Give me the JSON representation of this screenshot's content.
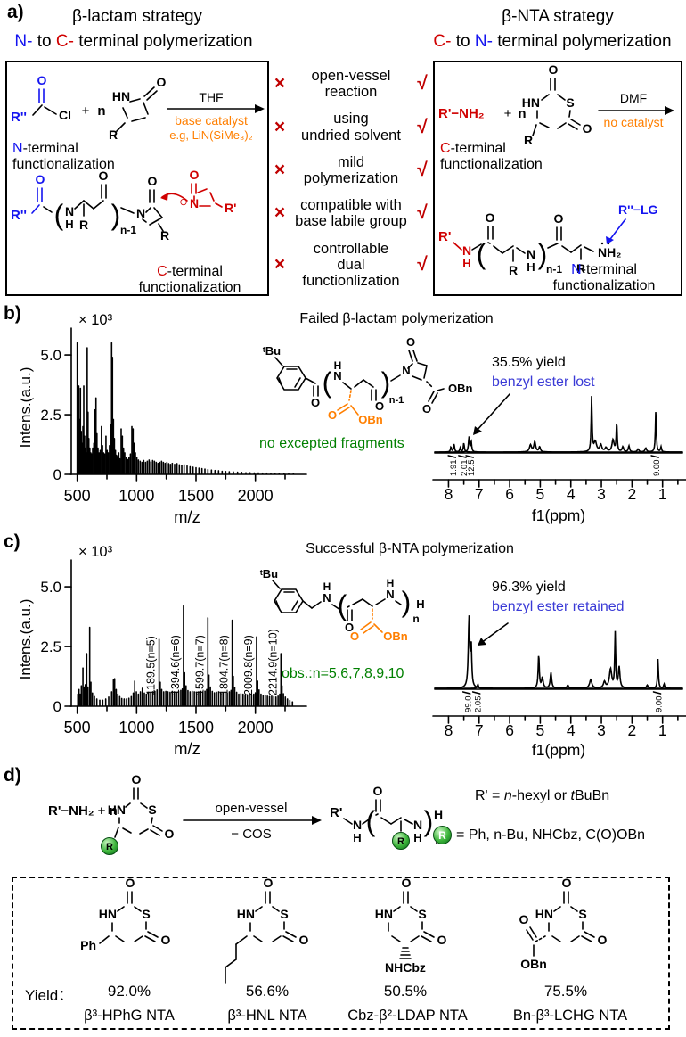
{
  "atoms": {
    "O": "O",
    "S": "S",
    "N": "N",
    "H": "H",
    "HN": "HN",
    "NH2": "NH₂",
    "R": "R",
    "Rp": "R'",
    "Rpp": "R''",
    "Cl": "Cl",
    "plus": "+",
    "n": "n",
    "n1": "n-1",
    "Ph": "Ph",
    "OBn": "OBn",
    "NHCbz": "NHCbz",
    "tBu": "ᵗBu",
    "RppLG": "R''−LG",
    "RpNH2": "R'−NH₂",
    "minus": "⊖"
  },
  "colors": {
    "red": "#d00000",
    "blue": "#1414f0",
    "annotation_blue": "#3a3ad6",
    "orange": "#ff7f00",
    "green": "#008000",
    "sphere_green": "#3db53b"
  },
  "panel_a": {
    "label": "a)",
    "left": {
      "title": "β-lactam strategy",
      "sub": [
        "N-",
        " to ",
        "C-",
        " terminal polymerization"
      ],
      "solvent": "THF",
      "cat1": "base catalyst",
      "cat2": "e.g, LiN(SiMe₃)₂",
      "n_term": [
        "N",
        "-terminal"
      ],
      "c_term": [
        "C",
        "-terminal"
      ],
      "func": "functionalization"
    },
    "right": {
      "title": "β-NTA strategy",
      "sub": [
        "C-",
        " to ",
        "N-",
        " terminal polymerization"
      ],
      "solvent": "DMF",
      "cat": "no catalyst",
      "c_term": [
        "C",
        "-terminal"
      ],
      "n_term": [
        "N",
        "-terminal"
      ],
      "func": "functionalization"
    },
    "compare": {
      "cross": "×",
      "check": "√",
      "items": [
        [
          "open-vessel",
          "reaction"
        ],
        [
          "using",
          "undried solvent"
        ],
        [
          "mild",
          "polymerization"
        ],
        [
          "compatible with",
          "base labile group"
        ],
        [
          "controllable",
          "dual functionlization"
        ]
      ]
    }
  },
  "panel_b": {
    "label": "b)",
    "title": "Failed β-lactam polymerization",
    "yield": "35.5% yield",
    "note": "benzyl ester lost",
    "green_note": "no excepted fragments"
  },
  "panel_c": {
    "label": "c)",
    "title": "Successful β-NTA polymerization",
    "yield": "96.3% yield",
    "note": "benzyl ester retained",
    "green_note": "obs.:n=5,6,7,8,9,10"
  },
  "panel_d": {
    "label": "d)",
    "reactant": "R'−NH₂ + n",
    "arrow_top": "open-vessel",
    "arrow_bot": "− COS",
    "legend1": {
      "pre": "R' = ",
      "i1": "n",
      "mid": "-hexyl or ",
      "i2": "t",
      "post": "BuBn"
    },
    "legend2": {
      "eq": "= Ph, n-Bu, NHCbz, C(O)OBn"
    },
    "yield_label": "Yield：",
    "monomers": [
      {
        "yield": "92.0%",
        "name": "β³-HPhG NTA"
      },
      {
        "yield": "56.6%",
        "name": "β³-HNL NTA"
      },
      {
        "yield": "50.5%",
        "name": "Cbz-β²-LDAP NTA"
      },
      {
        "yield": "75.5%",
        "name": "Bn-β³-LCHG NTA"
      }
    ]
  },
  "chart_data": [
    {
      "id": "ms_b",
      "type": "bar",
      "kind": "ms",
      "title": "Failed β-lactam polymerization MALDI-MS",
      "xlabel": "m/z",
      "ylabel": "Intens.(a.u.)",
      "scale_label": "× 10³",
      "xlim": [
        450,
        2400
      ],
      "ylim": [
        0,
        5.6
      ],
      "xticks": [
        500,
        1000,
        1500,
        2000
      ],
      "yticks": [
        0,
        2.5,
        5.0
      ],
      "ytick_labels": [
        "0",
        "2.5",
        "5.0"
      ],
      "peaks": [
        [
          500,
          5.5
        ],
        [
          506,
          3.0
        ],
        [
          513,
          3.7
        ],
        [
          520,
          2.3
        ],
        [
          527,
          3.6
        ],
        [
          534,
          1.8
        ],
        [
          541,
          1.3
        ],
        [
          548,
          2.0
        ],
        [
          555,
          3.7
        ],
        [
          562,
          1.6
        ],
        [
          570,
          1.1
        ],
        [
          578,
          0.9
        ],
        [
          584,
          5.3
        ],
        [
          591,
          2.6
        ],
        [
          598,
          1.5
        ],
        [
          606,
          1.1
        ],
        [
          614,
          0.9
        ],
        [
          622,
          0.85
        ],
        [
          630,
          1.1
        ],
        [
          640,
          1.3
        ],
        [
          650,
          2.7
        ],
        [
          658,
          3.2
        ],
        [
          666,
          1.7
        ],
        [
          675,
          1.1
        ],
        [
          684,
          0.9
        ],
        [
          694,
          1.0
        ],
        [
          704,
          2.0
        ],
        [
          713,
          1.2
        ],
        [
          722,
          0.9
        ],
        [
          732,
          0.85
        ],
        [
          742,
          1.6
        ],
        [
          752,
          1.0
        ],
        [
          762,
          0.9
        ],
        [
          772,
          1.2
        ],
        [
          782,
          2.1
        ],
        [
          790,
          5.5
        ],
        [
          797,
          4.9
        ],
        [
          805,
          2.3
        ],
        [
          813,
          1.5
        ],
        [
          822,
          1.0
        ],
        [
          831,
          0.8
        ],
        [
          840,
          0.75
        ],
        [
          850,
          0.9
        ],
        [
          860,
          0.65
        ],
        [
          870,
          1.9
        ],
        [
          880,
          1.6
        ],
        [
          890,
          1.1
        ],
        [
          900,
          0.9
        ],
        [
          912,
          0.7
        ],
        [
          924,
          0.62
        ],
        [
          936,
          0.7
        ],
        [
          948,
          0.85
        ],
        [
          960,
          2.0
        ],
        [
          970,
          1.9
        ],
        [
          980,
          1.3
        ],
        [
          990,
          0.9
        ],
        [
          1002,
          0.7
        ],
        [
          1015,
          0.6
        ],
        [
          1030,
          0.55
        ],
        [
          1045,
          0.5
        ],
        [
          1060,
          0.58
        ],
        [
          1075,
          0.5
        ],
        [
          1090,
          0.55
        ],
        [
          1105,
          0.6
        ],
        [
          1120,
          0.52
        ],
        [
          1135,
          0.58
        ],
        [
          1150,
          0.55
        ],
        [
          1165,
          0.5
        ],
        [
          1180,
          0.46
        ],
        [
          1195,
          0.5
        ],
        [
          1210,
          0.55
        ],
        [
          1225,
          0.5
        ],
        [
          1240,
          0.46
        ],
        [
          1255,
          0.5
        ],
        [
          1270,
          0.45
        ],
        [
          1285,
          0.42
        ],
        [
          1300,
          0.46
        ],
        [
          1320,
          0.42
        ],
        [
          1340,
          0.45
        ],
        [
          1360,
          0.4
        ],
        [
          1380,
          0.37
        ],
        [
          1400,
          0.4
        ],
        [
          1425,
          0.35
        ],
        [
          1450,
          0.32
        ],
        [
          1475,
          0.3
        ],
        [
          1500,
          0.28
        ],
        [
          1525,
          0.26
        ],
        [
          1550,
          0.24
        ],
        [
          1575,
          0.22
        ],
        [
          1600,
          0.2
        ],
        [
          1630,
          0.18
        ],
        [
          1660,
          0.16
        ],
        [
          1690,
          0.15
        ],
        [
          1720,
          0.13
        ],
        [
          1750,
          0.12
        ],
        [
          1780,
          0.11
        ],
        [
          1815,
          0.1
        ],
        [
          1850,
          0.09
        ],
        [
          1885,
          0.08
        ],
        [
          1920,
          0.07
        ],
        [
          1955,
          0.07
        ],
        [
          1990,
          0.06
        ],
        [
          2025,
          0.06
        ],
        [
          2060,
          0.05
        ],
        [
          2095,
          0.05
        ],
        [
          2130,
          0.04
        ],
        [
          2165,
          0.04
        ],
        [
          2200,
          0.04
        ],
        [
          2240,
          0.03
        ],
        [
          2280,
          0.03
        ],
        [
          2320,
          0.03
        ]
      ]
    },
    {
      "id": "nmr_b",
      "type": "line",
      "kind": "nmr",
      "title": "Failed β-lactam polymerization 1H NMR",
      "xlabel": "f1(ppm)",
      "xticks": [
        8,
        7,
        6,
        5,
        4,
        3,
        2,
        1
      ],
      "xlim": [
        8.45,
        0.35
      ],
      "peaks_black": [
        [
          7.92,
          0.05,
          0.02
        ],
        [
          7.82,
          0.08,
          0.02
        ],
        [
          7.62,
          0.04,
          0.02
        ],
        [
          7.5,
          0.09,
          0.02
        ],
        [
          5.32,
          0.07,
          0.04
        ],
        [
          5.18,
          0.1,
          0.035
        ],
        [
          5.02,
          0.05,
          0.03
        ],
        [
          3.32,
          0.55,
          0.018
        ],
        [
          3.2,
          0.1,
          0.05
        ],
        [
          3.02,
          0.07,
          0.04
        ],
        [
          2.85,
          0.04,
          0.04
        ],
        [
          2.62,
          0.12,
          0.04
        ],
        [
          2.5,
          0.3,
          0.016
        ],
        [
          2.3,
          0.05,
          0.03
        ],
        [
          2.1,
          0.06,
          0.025
        ],
        [
          1.8,
          0.03,
          0.03
        ],
        [
          1.55,
          0.04,
          0.03
        ],
        [
          1.22,
          0.42,
          0.016
        ],
        [
          1.05,
          0.05,
          0.02
        ]
      ],
      "peaks_orange": [
        [
          7.33,
          0.15,
          0.022
        ],
        [
          7.26,
          0.1,
          0.02
        ]
      ],
      "integrations": [
        [
          7.86,
          "1.91"
        ],
        [
          7.52,
          "2.01"
        ],
        [
          7.28,
          "12.5"
        ],
        [
          1.22,
          "9.00"
        ]
      ]
    },
    {
      "id": "ms_c",
      "type": "bar",
      "kind": "ms",
      "title": "Successful β-NTA polymerization MALDI-MS",
      "xlabel": "m/z",
      "ylabel": "Intens.(a.u.)",
      "scale_label": "× 10³",
      "xlim": [
        450,
        2400
      ],
      "ylim": [
        0,
        5.6
      ],
      "xticks": [
        500,
        1000,
        1500,
        2000
      ],
      "yticks": [
        0,
        2.5,
        5.0
      ],
      "ytick_labels": [
        "0",
        "2.5",
        "5.0"
      ],
      "peak_labels": [
        [
          1189.5,
          "1189.5(n=5)"
        ],
        [
          1394.6,
          "1394.6(n=6)"
        ],
        [
          1599.7,
          "1599.7(n=7)"
        ],
        [
          1804.7,
          "1804.7(n=8)"
        ],
        [
          2009.8,
          "2009.8(n=9)"
        ],
        [
          2214.9,
          "2214.9(n=10)"
        ]
      ],
      "peaks": [
        [
          505,
          0.5
        ],
        [
          515,
          0.7
        ],
        [
          525,
          0.5
        ],
        [
          535,
          0.85
        ],
        [
          548,
          1.6
        ],
        [
          558,
          0.8
        ],
        [
          568,
          0.9
        ],
        [
          580,
          2.2
        ],
        [
          590,
          0.8
        ],
        [
          605,
          3.3
        ],
        [
          615,
          1.0
        ],
        [
          628,
          0.55
        ],
        [
          645,
          0.4
        ],
        [
          665,
          0.3
        ],
        [
          690,
          0.25
        ],
        [
          715,
          0.25
        ],
        [
          740,
          0.3
        ],
        [
          765,
          0.38
        ],
        [
          790,
          0.6
        ],
        [
          805,
          1.1
        ],
        [
          815,
          1.15
        ],
        [
          828,
          0.7
        ],
        [
          842,
          0.5
        ],
        [
          858,
          0.4
        ],
        [
          875,
          0.32
        ],
        [
          895,
          0.3
        ],
        [
          915,
          0.3
        ],
        [
          935,
          0.33
        ],
        [
          955,
          0.4
        ],
        [
          972,
          0.55
        ],
        [
          984,
          1.05
        ],
        [
          998,
          0.6
        ],
        [
          1015,
          0.5
        ],
        [
          1032,
          0.6
        ],
        [
          1048,
          0.75
        ],
        [
          1065,
          0.55
        ],
        [
          1082,
          0.5
        ],
        [
          1100,
          0.58
        ],
        [
          1118,
          0.55
        ],
        [
          1136,
          0.6
        ],
        [
          1154,
          0.62
        ],
        [
          1172,
          0.68
        ],
        [
          1189.5,
          2.8
        ],
        [
          1199,
          1.0
        ],
        [
          1211,
          0.7
        ],
        [
          1228,
          0.6
        ],
        [
          1246,
          0.62
        ],
        [
          1264,
          0.6
        ],
        [
          1282,
          0.58
        ],
        [
          1300,
          0.62
        ],
        [
          1318,
          0.6
        ],
        [
          1336,
          0.58
        ],
        [
          1354,
          0.62
        ],
        [
          1372,
          0.66
        ],
        [
          1385,
          0.72
        ],
        [
          1394.6,
          4.2
        ],
        [
          1404,
          1.4
        ],
        [
          1416,
          0.85
        ],
        [
          1432,
          0.65
        ],
        [
          1450,
          0.6
        ],
        [
          1468,
          0.62
        ],
        [
          1486,
          0.6
        ],
        [
          1504,
          0.58
        ],
        [
          1522,
          0.6
        ],
        [
          1540,
          0.62
        ],
        [
          1558,
          0.6
        ],
        [
          1576,
          0.63
        ],
        [
          1590,
          0.7
        ],
        [
          1599.7,
          3.7
        ],
        [
          1609,
          1.3
        ],
        [
          1621,
          0.8
        ],
        [
          1637,
          0.62
        ],
        [
          1655,
          0.56
        ],
        [
          1673,
          0.58
        ],
        [
          1691,
          0.6
        ],
        [
          1709,
          0.55
        ],
        [
          1727,
          0.56
        ],
        [
          1745,
          0.58
        ],
        [
          1763,
          0.55
        ],
        [
          1781,
          0.6
        ],
        [
          1795,
          0.66
        ],
        [
          1804.7,
          3.6
        ],
        [
          1814,
          1.25
        ],
        [
          1826,
          0.78
        ],
        [
          1842,
          0.58
        ],
        [
          1860,
          0.5
        ],
        [
          1878,
          0.52
        ],
        [
          1896,
          0.5
        ],
        [
          1914,
          0.46
        ],
        [
          1932,
          0.48
        ],
        [
          1950,
          0.5
        ],
        [
          1968,
          0.46
        ],
        [
          1986,
          0.5
        ],
        [
          2000,
          0.56
        ],
        [
          2009.8,
          2.9
        ],
        [
          2019,
          1.05
        ],
        [
          2031,
          0.68
        ],
        [
          2047,
          0.5
        ],
        [
          2065,
          0.44
        ],
        [
          2083,
          0.45
        ],
        [
          2101,
          0.42
        ],
        [
          2119,
          0.4
        ],
        [
          2137,
          0.42
        ],
        [
          2155,
          0.4
        ],
        [
          2173,
          0.38
        ],
        [
          2191,
          0.42
        ],
        [
          2205,
          0.5
        ],
        [
          2214.9,
          2.2
        ],
        [
          2224,
          0.85
        ],
        [
          2236,
          0.52
        ],
        [
          2252,
          0.38
        ],
        [
          2270,
          0.3
        ],
        [
          2290,
          0.24
        ],
        [
          2312,
          0.18
        ]
      ]
    },
    {
      "id": "nmr_c",
      "type": "line",
      "kind": "nmr",
      "title": "Successful β-NTA polymerization 1H NMR",
      "xlabel": "f1(ppm)",
      "xticks": [
        8,
        7,
        6,
        5,
        4,
        3,
        2,
        1
      ],
      "xlim": [
        8.45,
        0.35
      ],
      "peaks_black": [
        [
          7.04,
          0.04,
          0.02
        ],
        [
          5.05,
          0.32,
          0.022
        ],
        [
          4.93,
          0.1,
          0.03
        ],
        [
          4.65,
          0.15,
          0.028
        ],
        [
          4.1,
          0.03,
          0.03
        ],
        [
          3.35,
          0.08,
          0.045
        ],
        [
          2.9,
          0.06,
          0.04
        ],
        [
          2.7,
          0.18,
          0.045
        ],
        [
          2.55,
          0.52,
          0.018
        ],
        [
          2.42,
          0.2,
          0.03
        ],
        [
          1.5,
          0.03,
          0.03
        ],
        [
          1.15,
          0.28,
          0.016
        ],
        [
          0.95,
          0.04,
          0.02
        ]
      ],
      "peaks_orange": [
        [
          7.33,
          0.66,
          0.028
        ],
        [
          7.26,
          0.38,
          0.022
        ]
      ],
      "integrations": [
        [
          7.38,
          "99.0"
        ],
        [
          7.06,
          "2.05"
        ],
        [
          1.15,
          "9.00"
        ]
      ]
    }
  ]
}
